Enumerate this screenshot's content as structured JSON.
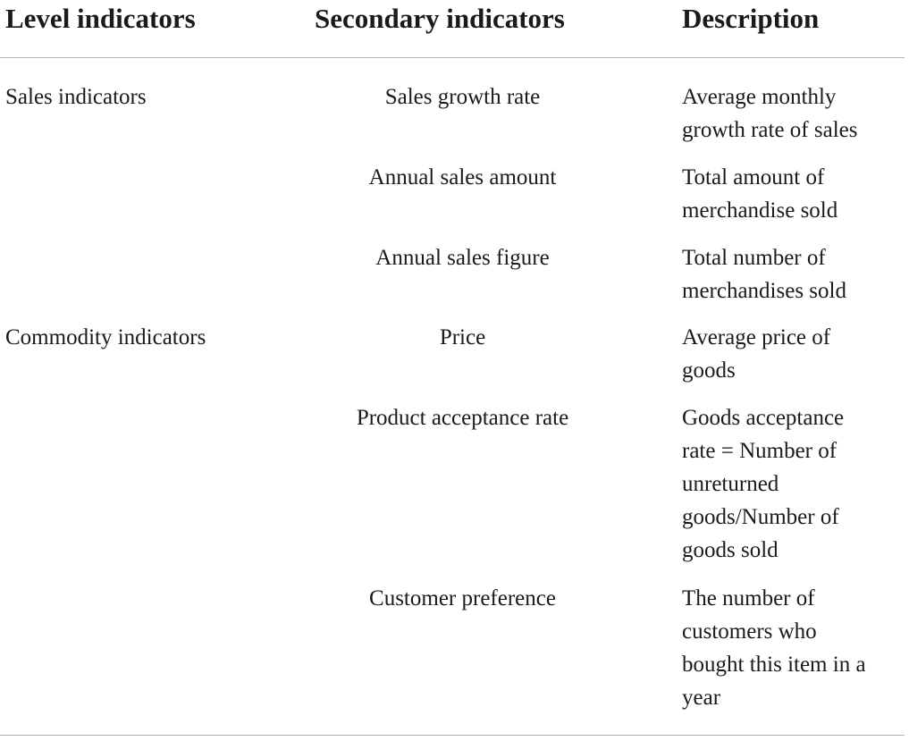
{
  "headers": {
    "level": "Level indicators",
    "secondary": "Secondary indicators",
    "description": "Description"
  },
  "rows": [
    {
      "level": "Sales indicators",
      "secondary": "Sales growth rate",
      "description": [
        "Average monthly",
        "growth rate of sales"
      ]
    },
    {
      "level": "",
      "secondary": "Annual sales amount",
      "description": [
        "Total amount of",
        "merchandise sold"
      ]
    },
    {
      "level": "",
      "secondary": "Annual sales figure",
      "description": [
        "Total number of",
        "merchandises sold"
      ]
    },
    {
      "level": "Commodity indicators",
      "secondary": "Price",
      "description": [
        "Average price of",
        "goods"
      ]
    },
    {
      "level": "",
      "secondary": "Product acceptance rate",
      "description": [
        "Goods acceptance",
        "rate = Number of",
        "unreturned",
        "goods/Number of",
        "goods sold"
      ]
    },
    {
      "level": "",
      "secondary": "Customer preference",
      "description": [
        "The number of",
        "customers who",
        "bought this item in a",
        "year"
      ]
    }
  ]
}
